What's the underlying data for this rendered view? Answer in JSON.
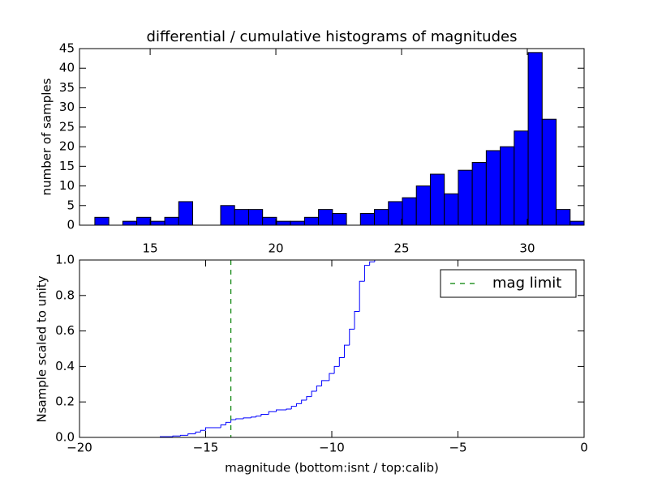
{
  "chart_data": [
    {
      "type": "histogram",
      "title": "differential / cumulative histograms of magnitudes",
      "ylabel": "number of samples",
      "color": "#0000ff",
      "bins": [
        12.8,
        13.356,
        13.912,
        14.468,
        15.024,
        15.58,
        16.136,
        16.692,
        17.248,
        17.804,
        18.36,
        18.916,
        19.472,
        20.028,
        20.584,
        21.14,
        21.696,
        22.252,
        22.808,
        23.364,
        23.92,
        24.476,
        25.032,
        25.588,
        26.144,
        26.7,
        27.256,
        27.812,
        28.368,
        28.924,
        29.48,
        30.036,
        30.592,
        31.148,
        31.704,
        32.26
      ],
      "values": [
        2,
        0,
        1,
        2,
        1,
        2,
        6,
        0,
        0,
        5,
        4,
        4,
        2,
        1,
        1,
        2,
        4,
        3,
        0,
        3,
        4,
        6,
        7,
        10,
        13,
        8,
        14,
        16,
        19,
        20,
        24,
        44,
        27,
        4,
        1
      ],
      "xlim": [
        12.19,
        32.26
      ],
      "xticks": [
        15,
        20,
        25,
        30
      ],
      "ylim": [
        0,
        45
      ],
      "yticks": [
        0,
        5,
        10,
        15,
        20,
        25,
        30,
        35,
        40,
        45
      ]
    },
    {
      "type": "line",
      "drawstyle": "steps-post",
      "xlabel": "magnitude (bottom:isnt / top:calib)",
      "ylabel": "Nsample scaled to unity",
      "x": [
        -20,
        -16.8,
        -16.3,
        -16,
        -15.7,
        -15.4,
        -15.2,
        -15,
        -14.4,
        -14.2,
        -14,
        -13.8,
        -13.5,
        -13.2,
        -13,
        -12.8,
        -12.5,
        -12.2,
        -11.8,
        -11.6,
        -11.4,
        -11.2,
        -11,
        -10.8,
        -10.6,
        -10.4,
        -10.1,
        -9.9,
        -9.7,
        -9.5,
        -9.3,
        -9.1,
        -8.9,
        -8.7,
        -8.5,
        -8.3
      ],
      "series": [
        {
          "color": "#0000ff",
          "values": [
            0,
            0.004,
            0.008,
            0.012,
            0.02,
            0.03,
            0.04,
            0.055,
            0.07,
            0.085,
            0.1,
            0.105,
            0.11,
            0.115,
            0.12,
            0.13,
            0.145,
            0.155,
            0.16,
            0.175,
            0.19,
            0.21,
            0.23,
            0.26,
            0.29,
            0.32,
            0.36,
            0.4,
            0.45,
            0.52,
            0.61,
            0.71,
            0.88,
            0.97,
            0.99,
            1.0
          ]
        }
      ],
      "vlines": [
        {
          "name": "mag limit",
          "x": -14,
          "color": "#008000",
          "linestyle": "dashed"
        }
      ],
      "legend": "upper right",
      "xlim": [
        -20,
        0
      ],
      "xticks": [
        {
          "value": -20,
          "label": "−20"
        },
        {
          "value": -15,
          "label": "−15"
        },
        {
          "value": -10,
          "label": "−10"
        },
        {
          "value": -5,
          "label": "−5"
        },
        0
      ],
      "ylim": [
        0,
        1
      ],
      "yticks": [
        {
          "value": 0,
          "label": "0.0"
        },
        0.2,
        0.4,
        0.6,
        0.8,
        {
          "value": 1,
          "label": "1.0"
        }
      ]
    }
  ]
}
